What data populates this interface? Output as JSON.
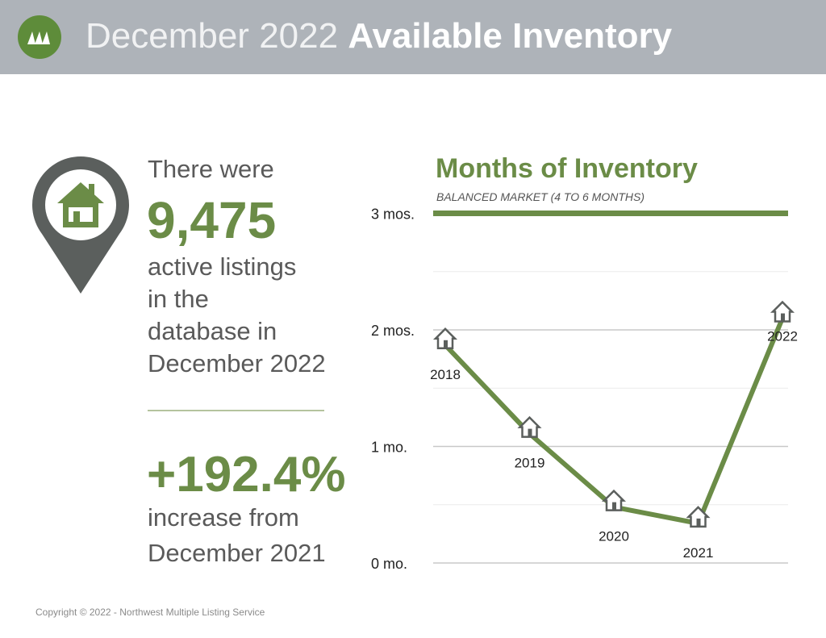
{
  "header": {
    "title_light": "December 2022",
    "title_bold": "Available Inventory"
  },
  "stats": {
    "intro": "There were",
    "listings": "9,475",
    "desc_lines": [
      "active listings",
      "in the",
      "database in",
      "December 2022"
    ],
    "change": "+192.4%",
    "change_lines": [
      "increase from",
      "December 2021"
    ]
  },
  "footer": {
    "copyright": "Copyright © 2022 - Northwest Multiple Listing Service"
  },
  "colors": {
    "accent": "#6b8c47",
    "header": "#aeb3b9",
    "pin": "#5b5f5d"
  },
  "chart_data": {
    "type": "line",
    "title": "Months of Inventory",
    "subtitle": "BALANCED MARKET (4 TO 6 MONTHS)",
    "categories": [
      "2018",
      "2019",
      "2020",
      "2021",
      "2022"
    ],
    "values": [
      1.87,
      1.11,
      0.48,
      0.34,
      2.1
    ],
    "ylim": [
      0,
      3
    ],
    "yticks": [
      {
        "v": 0,
        "label": "0 mo."
      },
      {
        "v": 1,
        "label": "1 mo."
      },
      {
        "v": 2,
        "label": "2 mos."
      },
      {
        "v": 3,
        "label": "3 mos."
      }
    ],
    "reference_line": 3,
    "grid": true
  }
}
